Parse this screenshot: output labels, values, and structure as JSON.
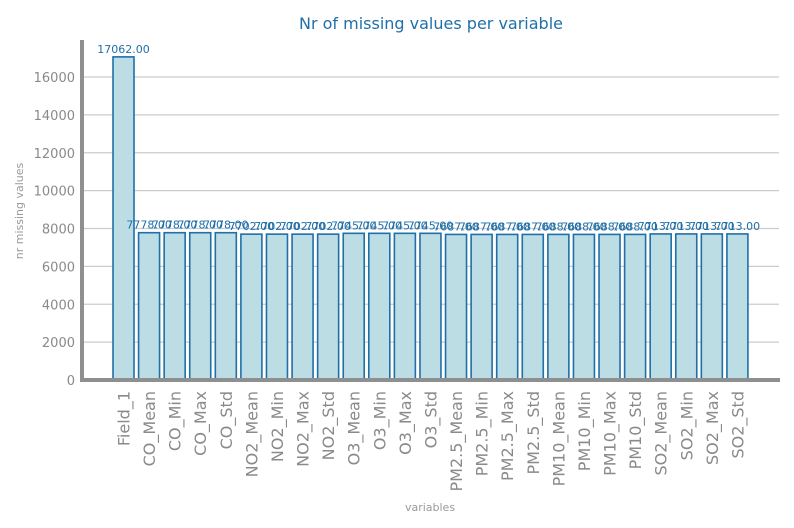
{
  "chart_data": {
    "type": "bar",
    "title": "Nr of missing values per variable",
    "xlabel": "variables",
    "ylabel": "nr missing values",
    "ylim": [
      0,
      18000
    ],
    "yticks": [
      0,
      2000,
      4000,
      6000,
      8000,
      10000,
      12000,
      14000,
      16000
    ],
    "grid": true,
    "categories": [
      "Field_1",
      "CO_Mean",
      "CO_Min",
      "CO_Max",
      "CO_Std",
      "NO2_Mean",
      "NO2_Min",
      "NO2_Max",
      "NO2_Std",
      "O3_Mean",
      "O3_Min",
      "O3_Max",
      "O3_Std",
      "PM2.5_Mean",
      "PM2.5_Min",
      "PM2.5_Max",
      "PM2.5_Std",
      "PM10_Mean",
      "PM10_Min",
      "PM10_Max",
      "PM10_Std",
      "SO2_Mean",
      "SO2_Min",
      "SO2_Max",
      "SO2_Std"
    ],
    "values": [
      17062,
      7778,
      7778,
      7778,
      7778,
      7702,
      7702,
      7702,
      7702,
      7745,
      7745,
      7745,
      7745,
      7687,
      7687,
      7687,
      7687,
      7688,
      7688,
      7688,
      7688,
      7713,
      7713,
      7713,
      7713
    ],
    "data_labels": [
      "17062.00",
      "7778.00",
      "7778.00",
      "7778.00",
      "7778.00",
      "7702.00",
      "7702.00",
      "7702.00",
      "7702.00",
      "7745.00",
      "7745.00",
      "7745.00",
      "7745.00",
      "7687.00",
      "7687.00",
      "7687.00",
      "7687.00",
      "7688.00",
      "7688.00",
      "7688.00",
      "7688.00",
      "7713.00",
      "7713.00",
      "7713.00",
      "7713.00"
    ],
    "colors": {
      "bar_fill": "#bcdde3",
      "bar_edge": "#1f6fa8",
      "title": "#1f6fa8",
      "tick": "#8a8a8a",
      "grid": "#cccccc"
    }
  }
}
